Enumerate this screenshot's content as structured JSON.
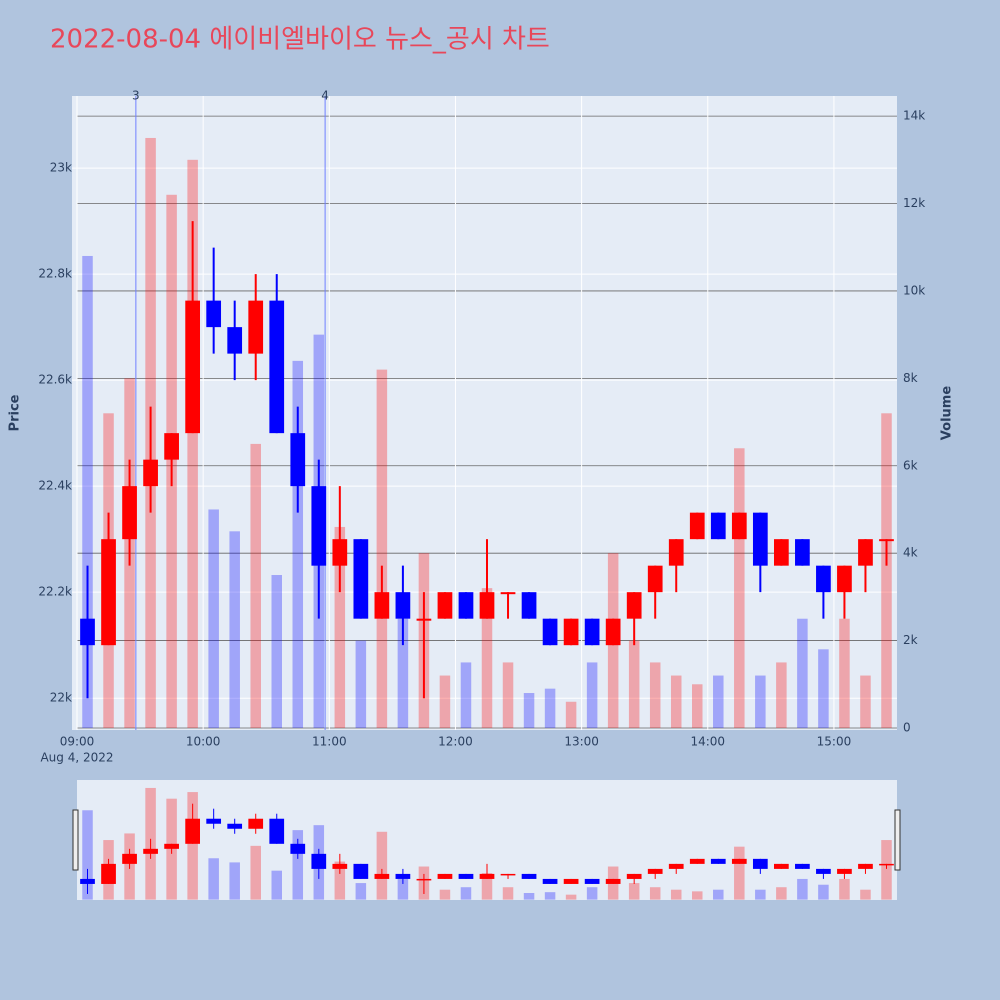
{
  "chart_data": {
    "type": "candlestick",
    "title": "2022-08-04 에이비엘바이오 뉴스_공시 차트",
    "y_label": "Price",
    "y2_label": "Volume",
    "x_date_label": "Aug 4, 2022",
    "up_color": "#ff0000",
    "down_color": "#0000ff",
    "x": [
      "09:00",
      "09:10",
      "09:20",
      "09:30",
      "09:40",
      "09:50",
      "10:00",
      "10:10",
      "10:20",
      "10:30",
      "10:40",
      "10:50",
      "11:00",
      "11:10",
      "11:20",
      "11:30",
      "11:40",
      "11:50",
      "12:00",
      "12:10",
      "12:20",
      "12:30",
      "12:40",
      "12:50",
      "13:00",
      "13:10",
      "13:20",
      "13:30",
      "13:40",
      "13:50",
      "14:00",
      "14:10",
      "14:20",
      "14:30",
      "14:40",
      "14:50",
      "15:00",
      "15:10",
      "15:20"
    ],
    "open": [
      22150,
      22100,
      22300,
      22400,
      22450,
      22500,
      22750,
      22700,
      22650,
      22750,
      22500,
      22400,
      22250,
      22300,
      22150,
      22200,
      22150,
      22150,
      22200,
      22150,
      22200,
      22200,
      22150,
      22100,
      22150,
      22100,
      22150,
      22200,
      22250,
      22300,
      22350,
      22300,
      22350,
      22250,
      22300,
      22250,
      22200,
      22250,
      22300
    ],
    "high": [
      22250,
      22350,
      22450,
      22550,
      22500,
      22900,
      22850,
      22750,
      22800,
      22800,
      22550,
      22450,
      22400,
      22300,
      22250,
      22250,
      22200,
      22200,
      22200,
      22300,
      22200,
      22200,
      22150,
      22150,
      22150,
      22150,
      22200,
      22250,
      22300,
      22350,
      22350,
      22350,
      22350,
      22300,
      22300,
      22250,
      22250,
      22300,
      22300
    ],
    "low": [
      22000,
      22100,
      22250,
      22350,
      22400,
      22500,
      22650,
      22600,
      22600,
      22500,
      22350,
      22150,
      22200,
      22150,
      22150,
      22100,
      22000,
      22150,
      22150,
      22150,
      22150,
      22150,
      22100,
      22100,
      22100,
      22100,
      22100,
      22150,
      22200,
      22300,
      22300,
      22300,
      22200,
      22250,
      22250,
      22150,
      22150,
      22200,
      22250
    ],
    "close": [
      22100,
      22300,
      22400,
      22450,
      22500,
      22750,
      22700,
      22650,
      22750,
      22500,
      22400,
      22250,
      22300,
      22150,
      22200,
      22150,
      22150,
      22200,
      22150,
      22200,
      22200,
      22150,
      22100,
      22150,
      22100,
      22150,
      22200,
      22250,
      22300,
      22350,
      22300,
      22350,
      22250,
      22300,
      22250,
      22200,
      22250,
      22300,
      22300
    ],
    "volume": [
      10800,
      7200,
      8000,
      13500,
      12200,
      13000,
      5000,
      4500,
      6500,
      3500,
      8400,
      9000,
      4600,
      2000,
      8200,
      2500,
      4000,
      1200,
      1500,
      3200,
      1500,
      800,
      900,
      600,
      1500,
      4000,
      2000,
      1500,
      1200,
      1000,
      1200,
      6400,
      1200,
      1500,
      2500,
      1800,
      2500,
      1200,
      7200
    ],
    "annotations": [
      {
        "x": "09:28",
        "text": "3"
      },
      {
        "x": "10:58",
        "text": "4"
      }
    ],
    "xlim": [
      "09:00",
      "15:30"
    ],
    "xticks": [
      "09:00",
      "10:00",
      "11:00",
      "12:00",
      "13:00",
      "14:00",
      "15:00"
    ],
    "ylim": [
      21940,
      23136
    ],
    "yticks": [
      {
        "value": 22000,
        "label": "22k"
      },
      {
        "value": 22200,
        "label": "22.2k"
      },
      {
        "value": 22400,
        "label": "22.4k"
      },
      {
        "value": 22600,
        "label": "22.6k"
      },
      {
        "value": 22800,
        "label": "22.8k"
      },
      {
        "value": 23000,
        "label": "23k"
      }
    ],
    "y2lim": [
      -46,
      14460
    ],
    "y2ticks": [
      0,
      {
        "value": 2000,
        "label": "2k"
      },
      {
        "value": 4000,
        "label": "4k"
      },
      {
        "value": 6000,
        "label": "6k"
      },
      {
        "value": 8000,
        "label": "8k"
      },
      {
        "value": 10000,
        "label": "10k"
      },
      {
        "value": 12000,
        "label": "12k"
      },
      {
        "value": 14000,
        "label": "14k"
      }
    ],
    "grid": true
  }
}
